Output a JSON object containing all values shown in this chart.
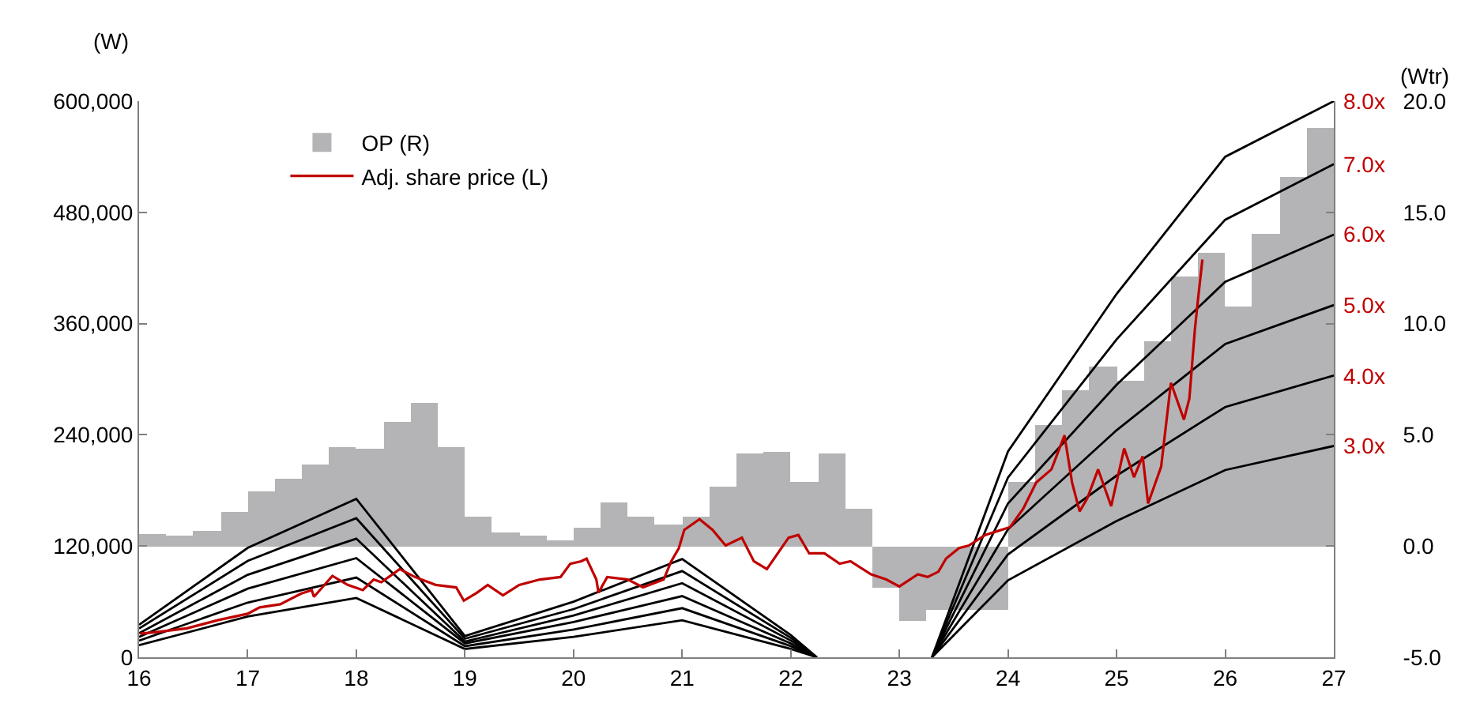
{
  "chart_data": {
    "type": "line",
    "ylabel": "(W)",
    "y2label": "(Wtr)",
    "xlim": [
      16,
      27
    ],
    "xticks": [
      16,
      17,
      18,
      19,
      20,
      21,
      22,
      23,
      24,
      25,
      26,
      27
    ],
    "ylim": [
      0,
      600000
    ],
    "yticks": [
      {
        "value": 0,
        "label": "0"
      },
      {
        "value": 120000,
        "label": "120,000"
      },
      {
        "value": 240000,
        "label": "240,000"
      },
      {
        "value": 360000,
        "label": "360,000"
      },
      {
        "value": 480000,
        "label": "480,000"
      },
      {
        "value": 600000,
        "label": "600,000"
      }
    ],
    "y2lim": [
      -5,
      20
    ],
    "y2ticks": [
      {
        "value": -5,
        "label": "-5.0"
      },
      {
        "value": 0,
        "label": "0.0"
      },
      {
        "value": 5,
        "label": "5.0"
      },
      {
        "value": 10,
        "label": "10.0"
      },
      {
        "value": 15,
        "label": "15.0"
      },
      {
        "value": 20,
        "label": "20.0"
      }
    ],
    "legend": "top left",
    "marker": "none",
    "line_style": "solid",
    "series": [
      {
        "name": "OP (R)",
        "type": "bar",
        "axis": "y2",
        "color": "#b4b4b6",
        "x": [
          16.125,
          16.375,
          16.625,
          16.875,
          17.125,
          17.375,
          17.625,
          17.875,
          18.125,
          18.375,
          18.625,
          18.875,
          19.125,
          19.375,
          19.625,
          19.875,
          20.125,
          20.375,
          20.625,
          20.875,
          21.125,
          21.375,
          21.625,
          21.875,
          22.125,
          22.375,
          22.625,
          22.875,
          23.125,
          23.375,
          23.625,
          23.875,
          24.125,
          24.375,
          24.625,
          24.875,
          25.125,
          25.375,
          25.625,
          25.875,
          26.125,
          26.375,
          26.625,
          26.875
        ],
        "values": [
          0.53,
          0.46,
          0.7,
          1.5,
          2.47,
          3.04,
          3.7,
          4.45,
          4.36,
          5.57,
          6.47,
          4.43,
          1.33,
          0.6,
          0.46,
          0.23,
          0.79,
          1.93,
          1.29,
          0.94,
          1.29,
          2.68,
          4.13,
          4.2,
          2.87,
          4.16,
          1.65,
          -1.9,
          -3.4,
          -2.85,
          -2.85,
          -2.85,
          2.87,
          5.47,
          7.03,
          8.07,
          7.44,
          9.21,
          12.09,
          13.2,
          10.8,
          14.0,
          16.6,
          18.8
        ]
      },
      {
        "color": "#000000",
        "x": [
          16,
          17,
          18,
          19,
          20,
          21,
          22,
          22.24,
          22.8,
          23.3,
          24,
          25,
          26,
          27
        ],
        "values": [
          13000,
          44000,
          64000,
          9000,
          22000,
          40000,
          9000,
          0,
          null,
          0,
          83000,
          147000,
          202000,
          228000
        ]
      },
      {
        "color": "#000000",
        "x": [
          16,
          17,
          18,
          19,
          20,
          21,
          22,
          22.24,
          22.8,
          23.3,
          24,
          25,
          26,
          27
        ],
        "values": [
          18000,
          59000,
          86000,
          12000,
          30000,
          53000,
          12000,
          0,
          null,
          0,
          111000,
          196000,
          270000,
          304000
        ]
      },
      {
        "color": "#000000",
        "x": [
          16,
          17,
          18,
          19,
          20,
          21,
          22,
          22.24,
          22.8,
          23.3,
          24,
          25,
          26,
          27
        ],
        "values": [
          22000,
          74000,
          107000,
          15000,
          38000,
          66000,
          15000,
          0,
          null,
          0,
          138000,
          245000,
          338000,
          380000
        ]
      },
      {
        "color": "#000000",
        "x": [
          16,
          17,
          18,
          19,
          20,
          21,
          22,
          22.24,
          22.8,
          23.3,
          24,
          25,
          26,
          27
        ],
        "values": [
          26000,
          89000,
          128000,
          17000,
          45000,
          80000,
          18000,
          0,
          null,
          0,
          166000,
          294000,
          405000,
          456000
        ]
      },
      {
        "color": "#000000",
        "x": [
          16,
          17,
          18,
          19,
          20,
          21,
          22,
          22.24,
          22.8,
          23.3,
          24,
          25,
          26,
          27
        ],
        "values": [
          31000,
          104000,
          150000,
          20000,
          52000,
          93000,
          21000,
          0,
          null,
          0,
          194000,
          343000,
          472000,
          532000
        ]
      },
      {
        "color": "#000000",
        "x": [
          16,
          17,
          18,
          19,
          20,
          21,
          22,
          22.24,
          22.8,
          23.3,
          24,
          25,
          26,
          27
        ],
        "values": [
          35000,
          118000,
          171000,
          23000,
          60000,
          106000,
          24000,
          0,
          null,
          0,
          222000,
          392000,
          540000,
          600000
        ]
      },
      {
        "name": "Adj. share price (L)",
        "color": "#c00000",
        "x": [
          16.01,
          16.16,
          16.44,
          16.73,
          17.0,
          17.11,
          17.3,
          17.49,
          17.59,
          17.61,
          17.78,
          17.92,
          18.06,
          18.16,
          18.23,
          18.4,
          18.54,
          18.73,
          18.92,
          18.99,
          19.11,
          19.21,
          19.35,
          19.5,
          19.69,
          19.88,
          19.97,
          20.07,
          20.12,
          20.21,
          20.23,
          20.31,
          20.5,
          20.64,
          20.83,
          20.9,
          20.97,
          21.02,
          21.16,
          21.28,
          21.4,
          21.55,
          21.66,
          21.78,
          21.98,
          22.07,
          22.17,
          22.31,
          22.45,
          22.55,
          22.74,
          22.88,
          23.0,
          23.17,
          23.26,
          23.36,
          23.43,
          23.55,
          23.64,
          23.79,
          24.02,
          24.14,
          24.26,
          24.4,
          24.52,
          24.59,
          24.66,
          24.73,
          24.83,
          24.95,
          25.07,
          25.16,
          25.24,
          25.29,
          25.41,
          25.5,
          25.62,
          25.67,
          25.72,
          25.75,
          25.79
        ],
        "values": [
          25500,
          27200,
          31200,
          40200,
          47000,
          53800,
          57200,
          68600,
          72500,
          65200,
          87800,
          78100,
          72500,
          83900,
          81000,
          95100,
          86600,
          78100,
          75400,
          61100,
          69600,
          78100,
          66900,
          78100,
          83900,
          86600,
          100900,
          103600,
          106500,
          83900,
          69600,
          86600,
          83900,
          75400,
          83900,
          103600,
          117800,
          137500,
          148900,
          137500,
          120600,
          129000,
          103600,
          95100,
          129000,
          131900,
          112100,
          112100,
          100900,
          103600,
          89500,
          83900,
          76400,
          89500,
          86600,
          92400,
          106500,
          117800,
          120600,
          131900,
          140400,
          160300,
          188500,
          202700,
          239400,
          188500,
          157400,
          171500,
          202700,
          163000,
          225300,
          194300,
          216800,
          165900,
          205500,
          296100,
          256400,
          279200,
          352700,
          386600,
          429100
        ]
      }
    ],
    "annotations": [
      "3.0x",
      "4.0x",
      "5.0x",
      "6.0x",
      "7.0x",
      "8.0x"
    ]
  }
}
